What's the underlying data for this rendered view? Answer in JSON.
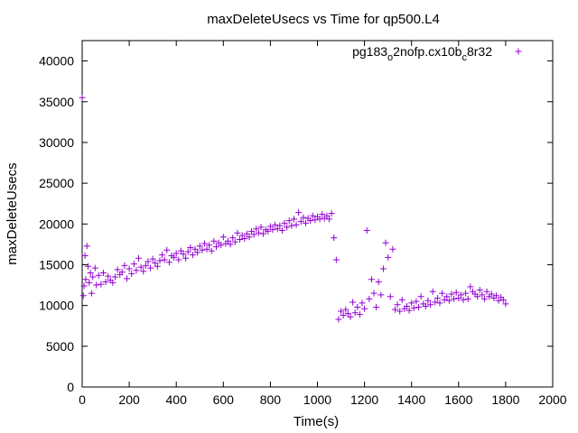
{
  "chart_data": {
    "type": "scatter",
    "title": "maxDeleteUsecs vs Time for qp500.L4",
    "xlabel": "Time(s)",
    "ylabel": "maxDeleteUsecs",
    "xlim": [
      0,
      2000
    ],
    "ylim": [
      0,
      42500
    ],
    "xticks": [
      0,
      200,
      400,
      600,
      800,
      1000,
      1200,
      1400,
      1600,
      1800,
      2000
    ],
    "yticks": [
      0,
      5000,
      10000,
      15000,
      20000,
      25000,
      30000,
      35000,
      40000
    ],
    "grid": false,
    "legend_position": "top-right",
    "legend": {
      "parts": [
        {
          "text": "pg183",
          "sub": false
        },
        {
          "text": "o",
          "sub": true
        },
        {
          "text": "2nofp.cx10b",
          "sub": false
        },
        {
          "text": "c",
          "sub": true
        },
        {
          "text": "8r32",
          "sub": false
        }
      ]
    },
    "marker": "+",
    "series_color": "#9400d3",
    "series": [
      {
        "name": "pg183_o2nofp.cx10b_c8r32",
        "points": [
          [
            0,
            35500
          ],
          [
            5,
            11200
          ],
          [
            8,
            12400
          ],
          [
            12,
            16100
          ],
          [
            15,
            13200
          ],
          [
            20,
            17300
          ],
          [
            25,
            14800
          ],
          [
            30,
            12800
          ],
          [
            35,
            14000
          ],
          [
            40,
            11500
          ],
          [
            45,
            13500
          ],
          [
            55,
            14600
          ],
          [
            60,
            12500
          ],
          [
            70,
            13700
          ],
          [
            80,
            12600
          ],
          [
            90,
            14000
          ],
          [
            100,
            12900
          ],
          [
            110,
            13600
          ],
          [
            120,
            13100
          ],
          [
            130,
            12800
          ],
          [
            140,
            13500
          ],
          [
            150,
            14400
          ],
          [
            160,
            13800
          ],
          [
            170,
            14100
          ],
          [
            180,
            14900
          ],
          [
            190,
            13300
          ],
          [
            200,
            14500
          ],
          [
            210,
            13900
          ],
          [
            220,
            15100
          ],
          [
            230,
            14300
          ],
          [
            240,
            15800
          ],
          [
            250,
            14700
          ],
          [
            260,
            14200
          ],
          [
            270,
            14900
          ],
          [
            280,
            15400
          ],
          [
            290,
            14600
          ],
          [
            300,
            15700
          ],
          [
            310,
            15200
          ],
          [
            320,
            14800
          ],
          [
            330,
            15500
          ],
          [
            340,
            16200
          ],
          [
            350,
            15600
          ],
          [
            360,
            16800
          ],
          [
            370,
            15300
          ],
          [
            380,
            16100
          ],
          [
            390,
            15900
          ],
          [
            400,
            16400
          ],
          [
            410,
            15600
          ],
          [
            420,
            16700
          ],
          [
            430,
            16300
          ],
          [
            440,
            15800
          ],
          [
            450,
            16600
          ],
          [
            460,
            17100
          ],
          [
            470,
            16200
          ],
          [
            480,
            16900
          ],
          [
            490,
            16500
          ],
          [
            500,
            17300
          ],
          [
            510,
            16800
          ],
          [
            520,
            17600
          ],
          [
            530,
            16900
          ],
          [
            540,
            17400
          ],
          [
            550,
            16700
          ],
          [
            560,
            17900
          ],
          [
            570,
            17200
          ],
          [
            580,
            17700
          ],
          [
            590,
            17400
          ],
          [
            600,
            18400
          ],
          [
            610,
            17600
          ],
          [
            620,
            17900
          ],
          [
            630,
            17500
          ],
          [
            640,
            18300
          ],
          [
            650,
            17800
          ],
          [
            660,
            18900
          ],
          [
            670,
            18100
          ],
          [
            680,
            18600
          ],
          [
            690,
            18200
          ],
          [
            700,
            18800
          ],
          [
            710,
            18400
          ],
          [
            720,
            19100
          ],
          [
            730,
            18700
          ],
          [
            740,
            19400
          ],
          [
            750,
            18900
          ],
          [
            760,
            19600
          ],
          [
            770,
            18800
          ],
          [
            780,
            19300
          ],
          [
            790,
            19100
          ],
          [
            800,
            19700
          ],
          [
            810,
            19300
          ],
          [
            820,
            19900
          ],
          [
            830,
            19400
          ],
          [
            840,
            19800
          ],
          [
            850,
            19200
          ],
          [
            860,
            20100
          ],
          [
            870,
            19600
          ],
          [
            880,
            20400
          ],
          [
            890,
            19800
          ],
          [
            900,
            20600
          ],
          [
            910,
            19900
          ],
          [
            920,
            21400
          ],
          [
            930,
            20300
          ],
          [
            940,
            20800
          ],
          [
            950,
            20100
          ],
          [
            960,
            20700
          ],
          [
            970,
            20400
          ],
          [
            980,
            21000
          ],
          [
            990,
            20500
          ],
          [
            1000,
            20900
          ],
          [
            1010,
            20600
          ],
          [
            1020,
            21200
          ],
          [
            1030,
            20700
          ],
          [
            1040,
            21000
          ],
          [
            1050,
            20600
          ],
          [
            1060,
            21300
          ],
          [
            1070,
            18300
          ],
          [
            1080,
            15600
          ],
          [
            1090,
            8300
          ],
          [
            1100,
            9300
          ],
          [
            1110,
            8800
          ],
          [
            1120,
            9500
          ],
          [
            1130,
            9000
          ],
          [
            1140,
            8600
          ],
          [
            1150,
            10400
          ],
          [
            1160,
            9100
          ],
          [
            1170,
            9800
          ],
          [
            1180,
            8900
          ],
          [
            1190,
            10300
          ],
          [
            1200,
            9600
          ],
          [
            1210,
            19200
          ],
          [
            1220,
            10800
          ],
          [
            1230,
            13200
          ],
          [
            1240,
            11500
          ],
          [
            1250,
            9800
          ],
          [
            1260,
            12900
          ],
          [
            1270,
            11300
          ],
          [
            1280,
            14500
          ],
          [
            1290,
            17700
          ],
          [
            1300,
            15900
          ],
          [
            1310,
            11100
          ],
          [
            1320,
            16900
          ],
          [
            1330,
            9500
          ],
          [
            1340,
            10100
          ],
          [
            1350,
            9300
          ],
          [
            1360,
            10700
          ],
          [
            1370,
            9600
          ],
          [
            1380,
            9900
          ],
          [
            1390,
            9400
          ],
          [
            1400,
            10300
          ],
          [
            1410,
            9700
          ],
          [
            1420,
            10500
          ],
          [
            1430,
            9800
          ],
          [
            1440,
            11100
          ],
          [
            1450,
            10200
          ],
          [
            1460,
            9900
          ],
          [
            1470,
            10600
          ],
          [
            1480,
            10100
          ],
          [
            1490,
            11700
          ],
          [
            1500,
            10400
          ],
          [
            1510,
            10900
          ],
          [
            1520,
            10300
          ],
          [
            1530,
            11500
          ],
          [
            1540,
            10700
          ],
          [
            1550,
            11100
          ],
          [
            1560,
            10600
          ],
          [
            1570,
            11400
          ],
          [
            1580,
            10800
          ],
          [
            1590,
            11600
          ],
          [
            1600,
            10900
          ],
          [
            1610,
            11300
          ],
          [
            1620,
            10700
          ],
          [
            1630,
            11500
          ],
          [
            1640,
            10800
          ],
          [
            1650,
            12300
          ],
          [
            1660,
            11700
          ],
          [
            1670,
            11400
          ],
          [
            1680,
            11100
          ],
          [
            1690,
            11900
          ],
          [
            1700,
            11300
          ],
          [
            1710,
            10800
          ],
          [
            1720,
            11700
          ],
          [
            1730,
            11100
          ],
          [
            1740,
            11400
          ],
          [
            1750,
            10900
          ],
          [
            1760,
            11200
          ],
          [
            1770,
            10600
          ],
          [
            1780,
            11000
          ],
          [
            1790,
            10700
          ],
          [
            1800,
            10200
          ]
        ]
      }
    ]
  }
}
